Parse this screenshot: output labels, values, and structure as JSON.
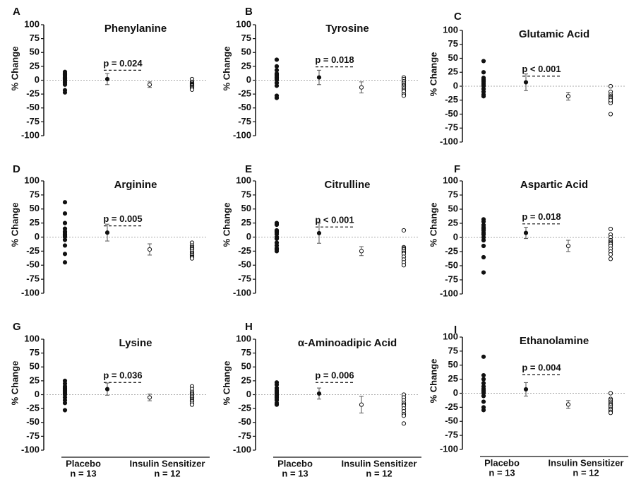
{
  "chart_data": [
    {
      "type": "strip",
      "panel": "A",
      "title": "Phenylanine",
      "y_label": "% Change",
      "ylim": [
        -100,
        100
      ],
      "yticks": [
        100,
        75,
        50,
        25,
        0,
        -25,
        -50,
        -75,
        -100
      ],
      "annotation": {
        "text": "p = 0.024",
        "y": 18
      },
      "placebo": {
        "values": [
          15,
          12,
          10,
          8,
          5,
          3,
          2,
          0,
          -3,
          -5,
          -8,
          -18,
          -22
        ],
        "mean": 2,
        "error": 10
      },
      "sensitizer": {
        "values": [
          2,
          -3,
          -5,
          -7,
          -8,
          -9,
          -10,
          -10,
          -12,
          -13,
          -15,
          -17
        ],
        "mean": -8,
        "error": 5
      }
    },
    {
      "type": "strip",
      "panel": "B",
      "title": "Tyrosine",
      "y_label": "% Change",
      "ylim": [
        -100,
        100
      ],
      "yticks": [
        100,
        75,
        50,
        25,
        0,
        -25,
        -50,
        -75,
        -100
      ],
      "annotation": {
        "text": "p = 0.018",
        "y": 24
      },
      "placebo": {
        "values": [
          37,
          25,
          18,
          12,
          10,
          8,
          5,
          3,
          0,
          -5,
          -10,
          -28,
          -32
        ],
        "mean": 5,
        "error": 13
      },
      "sensitizer": {
        "values": [
          5,
          2,
          -2,
          -5,
          -8,
          -10,
          -12,
          -15,
          -18,
          -20,
          -25,
          -28
        ],
        "mean": -13,
        "error": 10
      }
    },
    {
      "type": "strip",
      "panel": "C",
      "title": "Glutamic  Acid",
      "y_label": "% Change",
      "ylim": [
        -100,
        100
      ],
      "yticks": [
        100,
        75,
        50,
        25,
        0,
        -25,
        -50,
        -75,
        -100
      ],
      "annotation": {
        "text": "p < 0.001",
        "y": 18
      },
      "placebo": {
        "values": [
          45,
          25,
          15,
          12,
          10,
          8,
          5,
          2,
          0,
          -5,
          -10,
          -15,
          -18
        ],
        "mean": 7,
        "error": 15
      },
      "sensitizer": {
        "values": [
          0,
          -10,
          -15,
          -18,
          -20,
          -22,
          -25,
          -25,
          -28,
          -30,
          -25,
          -50
        ],
        "mean": -18,
        "error": 7
      }
    },
    {
      "type": "strip",
      "panel": "D",
      "title": "Arginine",
      "y_label": "% Change",
      "ylim": [
        -100,
        100
      ],
      "yticks": [
        100,
        75,
        50,
        25,
        0,
        -25,
        -50,
        -75,
        -100
      ],
      "annotation": {
        "text": "p = 0.005",
        "y": 20
      },
      "placebo": {
        "values": [
          62,
          42,
          25,
          15,
          10,
          8,
          5,
          3,
          0,
          -5,
          -15,
          -30,
          -45
        ],
        "mean": 8,
        "error": 15
      },
      "sensitizer": {
        "values": [
          -10,
          -15,
          -18,
          -20,
          -22,
          -25,
          -28,
          -30,
          -32,
          -35,
          -36,
          -38
        ],
        "mean": -22,
        "error": 10
      }
    },
    {
      "type": "strip",
      "panel": "E",
      "title": "Citrulline",
      "y_label": "% Change",
      "ylim": [
        -100,
        100
      ],
      "yticks": [
        100,
        75,
        50,
        25,
        0,
        -25,
        -50,
        -75,
        -100
      ],
      "annotation": {
        "text": "p < 0.001",
        "y": 18
      },
      "placebo": {
        "values": [
          25,
          22,
          12,
          10,
          8,
          5,
          0,
          -3,
          -10,
          -15,
          -20,
          -22,
          -25
        ],
        "mean": 7,
        "error": 18
      },
      "sensitizer": {
        "values": [
          12,
          -18,
          -20,
          -22,
          -25,
          -25,
          -28,
          -30,
          -35,
          -40,
          -45,
          -50
        ],
        "mean": -25,
        "error": 8
      }
    },
    {
      "type": "strip",
      "panel": "F",
      "title": "Aspartic  Acid",
      "y_label": "% Change",
      "ylim": [
        -100,
        100
      ],
      "yticks": [
        100,
        75,
        50,
        25,
        0,
        -25,
        -50,
        -75,
        -100
      ],
      "annotation": {
        "text": "p = 0.018",
        "y": 24
      },
      "placebo": {
        "values": [
          32,
          28,
          22,
          18,
          15,
          12,
          8,
          5,
          0,
          -5,
          -15,
          -35,
          -62
        ],
        "mean": 8,
        "error": 10
      },
      "sensitizer": {
        "values": [
          15,
          5,
          0,
          -5,
          -8,
          -10,
          -12,
          -15,
          -20,
          -25,
          -30,
          -38
        ],
        "mean": -15,
        "error": 10
      }
    },
    {
      "type": "strip",
      "panel": "G",
      "title": "Lysine",
      "y_label": "% Change",
      "ylim": [
        -100,
        100
      ],
      "yticks": [
        100,
        75,
        50,
        25,
        0,
        -25,
        -50,
        -75,
        -100
      ],
      "annotation": {
        "text": "p = 0.036",
        "y": 22
      },
      "categories": [
        "Placebo",
        "Insulin Sensitizer"
      ],
      "n_labels": [
        "n = 13",
        "n = 12"
      ],
      "placebo": {
        "values": [
          25,
          20,
          15,
          12,
          10,
          8,
          5,
          3,
          0,
          -5,
          -10,
          -15,
          -28
        ],
        "mean": 10,
        "error": 11
      },
      "sensitizer": {
        "values": [
          15,
          10,
          5,
          2,
          0,
          -3,
          -5,
          -8,
          -10,
          -12,
          -15,
          -18
        ],
        "mean": -5,
        "error": 6
      }
    },
    {
      "type": "strip",
      "panel": "H",
      "title": "α-Aminoadipic  Acid",
      "y_label": "% Change",
      "ylim": [
        -100,
        100
      ],
      "yticks": [
        100,
        75,
        50,
        25,
        0,
        -25,
        -50,
        -75,
        -100
      ],
      "annotation": {
        "text": "p = 0.006",
        "y": 22
      },
      "categories": [
        "Placebo",
        "Insulin Sensitizer"
      ],
      "n_labels": [
        "n = 13",
        "n = 12"
      ],
      "placebo": {
        "values": [
          22,
          18,
          12,
          8,
          5,
          3,
          0,
          -2,
          -5,
          -8,
          -10,
          -15,
          -18
        ],
        "mean": 2,
        "error": 10
      },
      "sensitizer": {
        "values": [
          0,
          -5,
          -10,
          -15,
          -18,
          -18,
          -20,
          -25,
          -30,
          -35,
          -38,
          -52
        ],
        "mean": -18,
        "error": 15
      }
    },
    {
      "type": "strip",
      "panel": "I",
      "title": "Ethanolamine",
      "y_label": "% Change",
      "ylim": [
        -100,
        100
      ],
      "yticks": [
        100,
        75,
        50,
        25,
        0,
        -25,
        -50,
        -75,
        -100
      ],
      "annotation": {
        "text": "p = 0.004",
        "y": 33
      },
      "categories": [
        "Placebo",
        "Insulin Sensitizer"
      ],
      "n_labels": [
        "n = 13",
        "n = 12"
      ],
      "placebo": {
        "values": [
          65,
          32,
          25,
          18,
          12,
          8,
          5,
          2,
          0,
          -5,
          -15,
          -25,
          -30
        ],
        "mean": 7,
        "error": 12
      },
      "sensitizer": {
        "values": [
          0,
          -10,
          -12,
          -15,
          -18,
          -20,
          -22,
          -25,
          -28,
          -30,
          -33,
          -35
        ],
        "mean": -20,
        "error": 7
      }
    }
  ]
}
